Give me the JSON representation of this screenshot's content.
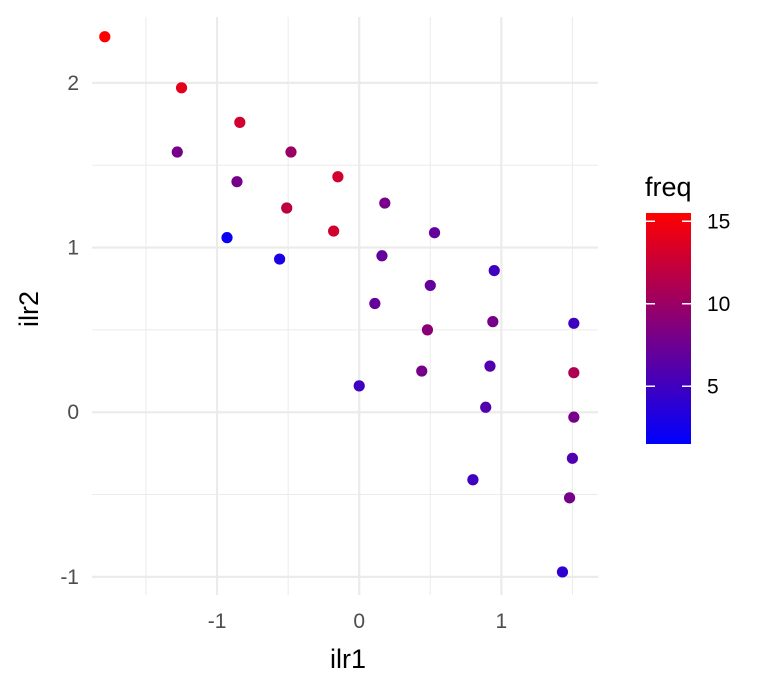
{
  "chart_data": {
    "type": "scatter",
    "xlabel": "ilr1",
    "ylabel": "ilr2",
    "xlim": [
      -1.88,
      1.68
    ],
    "ylim": [
      -1.11,
      2.4
    ],
    "x_ticks": [
      -1,
      0,
      1
    ],
    "x_tick_labels": [
      "-1",
      "0",
      "1"
    ],
    "y_ticks": [
      -1,
      0,
      1,
      2
    ],
    "y_tick_labels": [
      "-1",
      "0",
      "1",
      "2"
    ],
    "grid": true,
    "legend": {
      "title": "freq",
      "placement": "right",
      "type": "colorbar",
      "min": 1.5,
      "max": 15.5,
      "low_color": "#0000FF",
      "high_color": "#FF0000",
      "breaks": [
        5,
        10,
        15
      ],
      "break_labels": [
        "5",
        "10",
        "15"
      ]
    },
    "points": [
      {
        "x": -1.79,
        "y": 2.28,
        "freq": 16
      },
      {
        "x": -1.25,
        "y": 1.97,
        "freq": 14
      },
      {
        "x": -0.84,
        "y": 1.76,
        "freq": 13
      },
      {
        "x": -1.28,
        "y": 1.58,
        "freq": 8
      },
      {
        "x": -0.48,
        "y": 1.58,
        "freq": 10
      },
      {
        "x": -0.86,
        "y": 1.4,
        "freq": 8
      },
      {
        "x": -0.15,
        "y": 1.43,
        "freq": 13
      },
      {
        "x": -0.51,
        "y": 1.24,
        "freq": 12
      },
      {
        "x": 0.18,
        "y": 1.27,
        "freq": 8
      },
      {
        "x": -0.93,
        "y": 1.06,
        "freq": 2
      },
      {
        "x": -0.18,
        "y": 1.1,
        "freq": 13
      },
      {
        "x": 0.53,
        "y": 1.09,
        "freq": 7
      },
      {
        "x": -0.56,
        "y": 0.93,
        "freq": 3
      },
      {
        "x": 0.16,
        "y": 0.95,
        "freq": 7
      },
      {
        "x": 0.95,
        "y": 0.86,
        "freq": 5
      },
      {
        "x": 0.5,
        "y": 0.77,
        "freq": 7
      },
      {
        "x": 0.11,
        "y": 0.66,
        "freq": 7
      },
      {
        "x": 0.94,
        "y": 0.55,
        "freq": 8
      },
      {
        "x": 1.51,
        "y": 0.54,
        "freq": 5
      },
      {
        "x": 0.48,
        "y": 0.5,
        "freq": 9
      },
      {
        "x": 0.92,
        "y": 0.28,
        "freq": 6
      },
      {
        "x": 0.44,
        "y": 0.25,
        "freq": 8
      },
      {
        "x": 1.51,
        "y": 0.24,
        "freq": 11
      },
      {
        "x": 0.0,
        "y": 0.16,
        "freq": 5
      },
      {
        "x": 0.89,
        "y": 0.03,
        "freq": 6
      },
      {
        "x": 1.51,
        "y": -0.03,
        "freq": 8
      },
      {
        "x": 1.5,
        "y": -0.28,
        "freq": 6
      },
      {
        "x": 0.8,
        "y": -0.41,
        "freq": 5
      },
      {
        "x": 1.48,
        "y": -0.52,
        "freq": 8
      },
      {
        "x": 1.43,
        "y": -0.97,
        "freq": 4
      }
    ]
  }
}
